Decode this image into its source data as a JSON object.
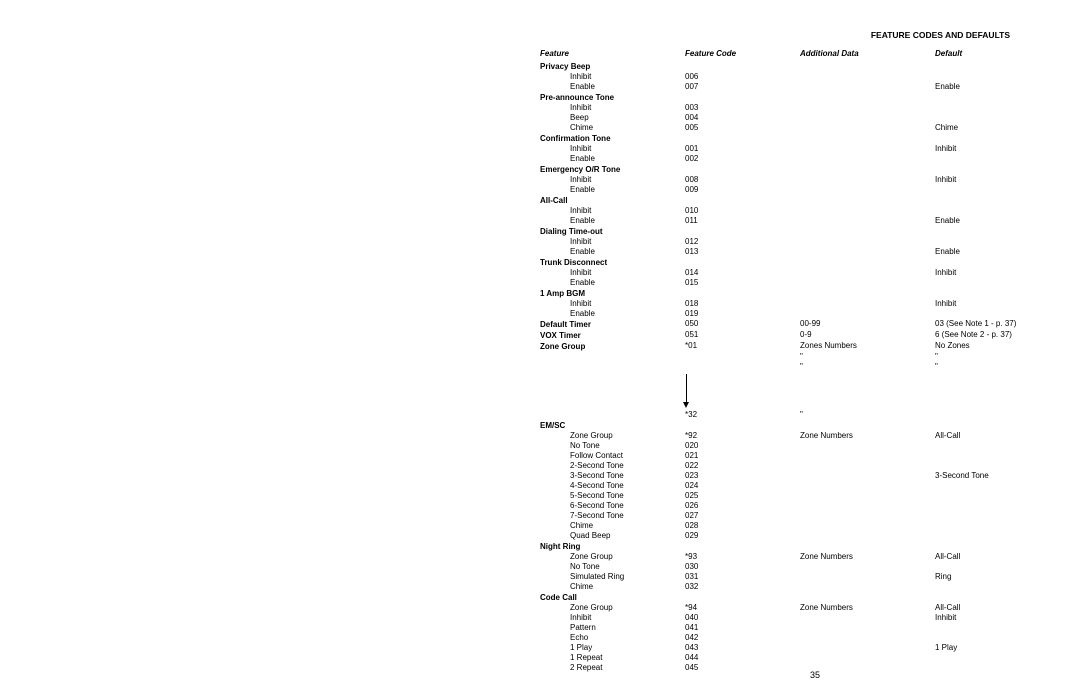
{
  "title": "FEATURE CODES AND DEFAULTS",
  "pageNumber": "35",
  "headers": {
    "feature": "Feature",
    "featureCode": "Feature Code",
    "additionalData": "Additional Data",
    "default": "Default"
  },
  "rows": [
    {
      "type": "group",
      "feature": "Privacy Beep"
    },
    {
      "type": "sub",
      "feature": "Inhibit",
      "code": "006"
    },
    {
      "type": "sub",
      "feature": "Enable",
      "code": "007",
      "default": "Enable"
    },
    {
      "type": "group",
      "feature": "Pre-announce Tone"
    },
    {
      "type": "sub",
      "feature": "Inhibit",
      "code": "003"
    },
    {
      "type": "sub",
      "feature": "Beep",
      "code": "004"
    },
    {
      "type": "sub",
      "feature": "Chime",
      "code": "005",
      "default": "Chime"
    },
    {
      "type": "group",
      "feature": "Confirmation Tone"
    },
    {
      "type": "sub",
      "feature": "Inhibit",
      "code": "001",
      "default": "Inhibit"
    },
    {
      "type": "sub",
      "feature": "Enable",
      "code": "002"
    },
    {
      "type": "group",
      "feature": "Emergency O/R Tone"
    },
    {
      "type": "sub",
      "feature": "Inhibit",
      "code": "008",
      "default": "Inhibit"
    },
    {
      "type": "sub",
      "feature": "Enable",
      "code": "009"
    },
    {
      "type": "group",
      "feature": "All-Call"
    },
    {
      "type": "sub",
      "feature": "Inhibit",
      "code": "010"
    },
    {
      "type": "sub",
      "feature": "Enable",
      "code": "011",
      "default": "Enable"
    },
    {
      "type": "group",
      "feature": "Dialing Time-out"
    },
    {
      "type": "sub",
      "feature": "Inhibit",
      "code": "012"
    },
    {
      "type": "sub",
      "feature": "Enable",
      "code": "013",
      "default": "Enable"
    },
    {
      "type": "group",
      "feature": "Trunk Disconnect"
    },
    {
      "type": "sub",
      "feature": "Inhibit",
      "code": "014",
      "default": "Inhibit"
    },
    {
      "type": "sub",
      "feature": "Enable",
      "code": "015"
    },
    {
      "type": "group",
      "feature": "1 Amp BGM"
    },
    {
      "type": "sub",
      "feature": "Inhibit",
      "code": "018",
      "default": "Inhibit"
    },
    {
      "type": "sub",
      "feature": "Enable",
      "code": "019"
    },
    {
      "type": "group",
      "feature": "Default Timer",
      "code": "050",
      "add": "00-99",
      "default": "03 (See Note 1 - p. 37)"
    },
    {
      "type": "group",
      "feature": "VOX Timer",
      "code": "051",
      "add": "0-9",
      "default": "6 (See Note 2 - p. 37)"
    },
    {
      "type": "group",
      "feature": "Zone Group",
      "code": "*01",
      "add": "Zones Numbers",
      "default": "No Zones"
    },
    {
      "type": "plain",
      "add": "\"",
      "default": "\""
    },
    {
      "type": "plain",
      "add": "\"",
      "default": "\""
    },
    {
      "type": "arrow"
    },
    {
      "type": "plain",
      "code": "*32",
      "add": "\""
    },
    {
      "type": "group",
      "feature": "EM/SC"
    },
    {
      "type": "sub",
      "feature": "Zone Group",
      "code": "*92",
      "add": "Zone Numbers",
      "default": "All-Call"
    },
    {
      "type": "sub",
      "feature": "No Tone",
      "code": "020"
    },
    {
      "type": "sub",
      "feature": "Follow Contact",
      "code": "021"
    },
    {
      "type": "sub",
      "feature": "2-Second Tone",
      "code": "022"
    },
    {
      "type": "sub",
      "feature": "3-Second Tone",
      "code": "023",
      "default": "3-Second Tone"
    },
    {
      "type": "sub",
      "feature": "4-Second Tone",
      "code": "024"
    },
    {
      "type": "sub",
      "feature": "5-Second Tone",
      "code": "025"
    },
    {
      "type": "sub",
      "feature": "6-Second Tone",
      "code": "026"
    },
    {
      "type": "sub",
      "feature": "7-Second Tone",
      "code": "027"
    },
    {
      "type": "sub",
      "feature": "Chime",
      "code": "028"
    },
    {
      "type": "sub",
      "feature": "Quad Beep",
      "code": "029"
    },
    {
      "type": "group",
      "feature": "Night Ring"
    },
    {
      "type": "sub",
      "feature": "Zone Group",
      "code": "*93",
      "add": "Zone Numbers",
      "default": "All-Call"
    },
    {
      "type": "sub",
      "feature": "No Tone",
      "code": "030"
    },
    {
      "type": "sub",
      "feature": "Simulated Ring",
      "code": "031",
      "default": "Ring"
    },
    {
      "type": "sub",
      "feature": "Chime",
      "code": "032"
    },
    {
      "type": "group",
      "feature": "Code Call"
    },
    {
      "type": "sub",
      "feature": "Zone Group",
      "code": "*94",
      "add": "Zone Numbers",
      "default": "All-Call"
    },
    {
      "type": "sub",
      "feature": "Inhibit",
      "code": "040",
      "default": "Inhibit"
    },
    {
      "type": "sub",
      "feature": "Pattern",
      "code": "041"
    },
    {
      "type": "sub",
      "feature": "Echo",
      "code": "042"
    },
    {
      "type": "sub",
      "feature": "1 Play",
      "code": "043",
      "default": "1 Play"
    },
    {
      "type": "sub",
      "feature": "1 Repeat",
      "code": "044"
    },
    {
      "type": "sub",
      "feature": "2 Repeat",
      "code": "045"
    }
  ]
}
